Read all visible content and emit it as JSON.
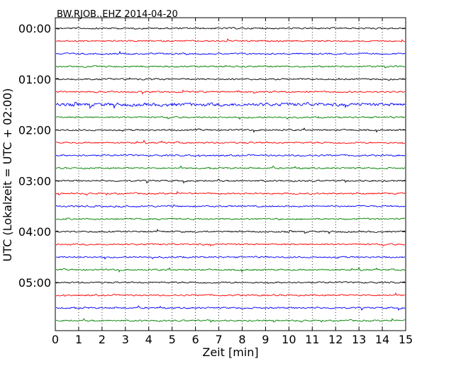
{
  "chart_data": {
    "type": "line",
    "title": "BW.RJOB..EHZ 2014-04-20",
    "xlabel": "Zeit  [min]",
    "ylabel": "UTC (Lokalzeit = UTC + 02:00)",
    "xlim": [
      0,
      15
    ],
    "x_ticks": [
      "0",
      "1",
      "2",
      "3",
      "4",
      "5",
      "6",
      "7",
      "8",
      "9",
      "10",
      "11",
      "12",
      "13",
      "14",
      "15"
    ],
    "y_tick_labels": [
      "00:00",
      "01:00",
      "02:00",
      "03:00",
      "04:00",
      "05:00"
    ],
    "grid": "vertical dotted",
    "trace_interval_minutes": 15,
    "trace_count": 24,
    "trace_color_cycle": [
      "#000000",
      "#ff0000",
      "#0000ff",
      "#008000"
    ]
  }
}
